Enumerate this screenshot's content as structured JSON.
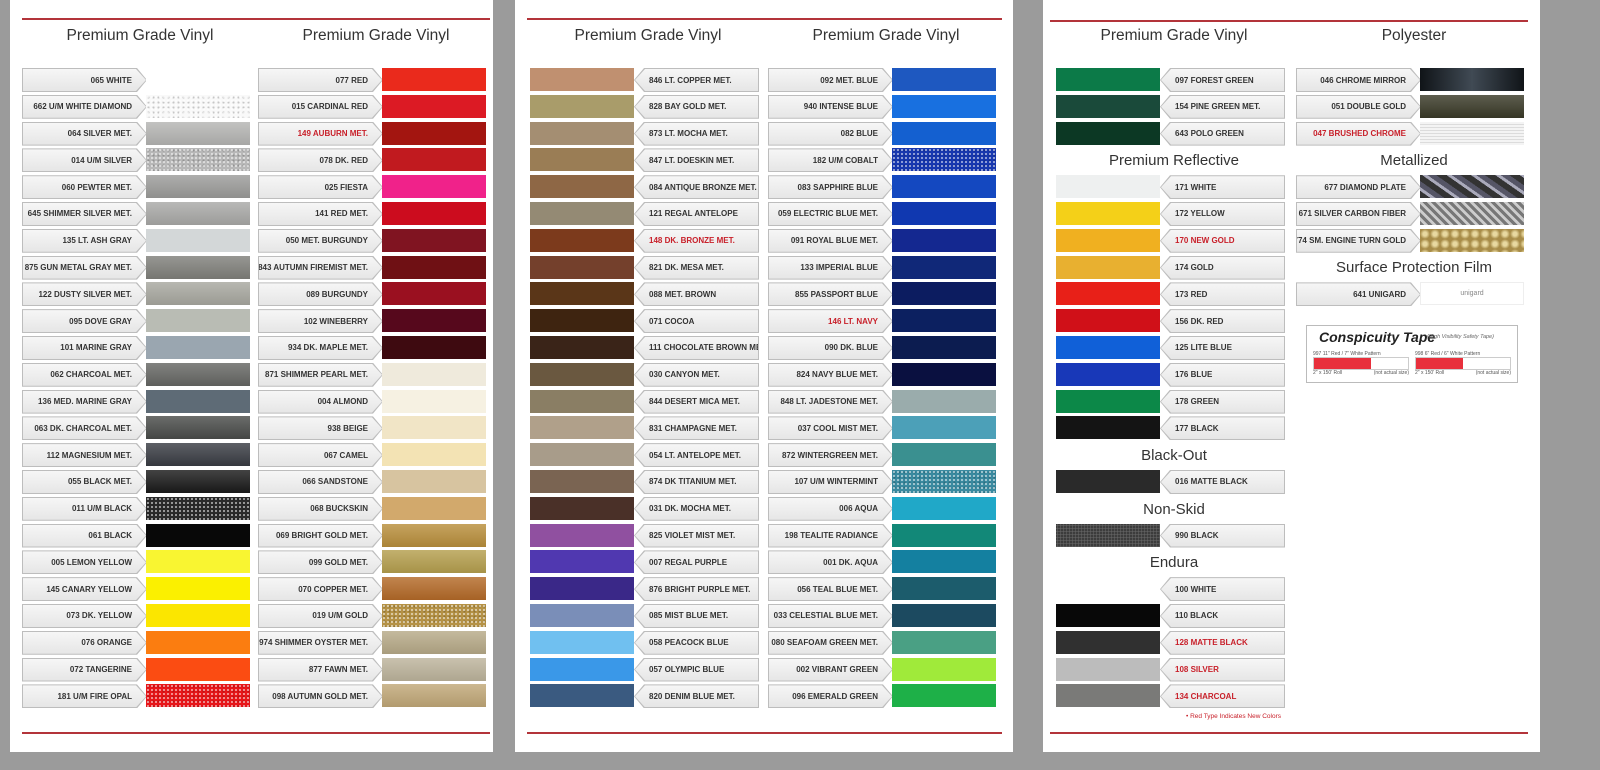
{
  "pages": [
    {
      "columns": [
        {
          "header": "Premium Grade Vinyl",
          "arrow": "right",
          "rows": [
            {
              "label": "065 WHITE",
              "color": "#ffffff"
            },
            {
              "label": "662 U/M WHITE DIAMOND",
              "color": "#f9f9f9",
              "pattern": "glitter"
            },
            {
              "label": "064 SILVER MET.",
              "color": "#b5b5b3",
              "pattern": "metallic"
            },
            {
              "label": "014 U/M SILVER",
              "color": "#b8b8b8",
              "pattern": "glitter"
            },
            {
              "label": "060 PEWTER MET.",
              "color": "#9c9c9a",
              "pattern": "metallic"
            },
            {
              "label": "645 SHIMMER SILVER MET.",
              "color": "#a9a9a7",
              "pattern": "metallic"
            },
            {
              "label": "135 LT. ASH GRAY",
              "color": "#d3d7d8"
            },
            {
              "label": "875 GUN METAL GRAY MET.",
              "color": "#80807b",
              "pattern": "metallic"
            },
            {
              "label": "122 DUSTY SILVER MET.",
              "color": "#a8a8a0",
              "pattern": "metallic"
            },
            {
              "label": "095 DOVE GRAY",
              "color": "#b9bcb4"
            },
            {
              "label": "101 MARINE GRAY",
              "color": "#9aa6b0"
            },
            {
              "label": "062 CHARCOAL MET.",
              "color": "#666764",
              "pattern": "metallic"
            },
            {
              "label": "136 MED. MARINE GRAY",
              "color": "#5e6b76"
            },
            {
              "label": "063 DK. CHARCOAL MET.",
              "color": "#4a4c4a",
              "pattern": "metallic"
            },
            {
              "label": "112 MAGNESIUM MET.",
              "color": "#3a3d44",
              "pattern": "metallic"
            },
            {
              "label": "055 BLACK MET.",
              "color": "#1a1a1a",
              "pattern": "metallic"
            },
            {
              "label": "011 U/M BLACK",
              "color": "#2a2a2a",
              "pattern": "glitter"
            },
            {
              "label": "061 BLACK",
              "color": "#080808"
            },
            {
              "label": "005 LEMON YELLOW",
              "color": "#f9f531"
            },
            {
              "label": "145 CANARY YELLOW",
              "color": "#fbf000"
            },
            {
              "label": "073 DK. YELLOW",
              "color": "#fbe600"
            },
            {
              "label": "076 ORANGE",
              "color": "#fb7d10"
            },
            {
              "label": "072 TANGERINE",
              "color": "#fb4c12"
            },
            {
              "label": "181 U/M FIRE OPAL",
              "color": "#e8161a",
              "pattern": "glitter"
            }
          ]
        },
        {
          "header": "Premium Grade Vinyl",
          "arrow": "right",
          "rows": [
            {
              "label": "077 RED",
              "color": "#ea2a1c"
            },
            {
              "label": "015 CARDINAL RED",
              "color": "#dc1a24"
            },
            {
              "label": "149 AUBURN MET.",
              "color": "#a31510",
              "new": true
            },
            {
              "label": "078 DK. RED",
              "color": "#c11a1f"
            },
            {
              "label": "025 FIESTA",
              "color": "#f0228a"
            },
            {
              "label": "141 RED MET.",
              "color": "#cc0c1e"
            },
            {
              "label": "050 MET. BURGUNDY",
              "color": "#801421"
            },
            {
              "label": "843 AUTUMN FIREMIST MET.",
              "color": "#6f1014"
            },
            {
              "label": "089 BURGUNDY",
              "color": "#9a1020"
            },
            {
              "label": "102 WINEBERRY",
              "color": "#56081c"
            },
            {
              "label": "934 DK. MAPLE MET.",
              "color": "#3e0a10"
            },
            {
              "label": "871 SHIMMER PEARL MET.",
              "color": "#efeadc"
            },
            {
              "label": "004 ALMOND",
              "color": "#f6f1e2"
            },
            {
              "label": "938 BEIGE",
              "color": "#f1e5c6"
            },
            {
              "label": "067 CAMEL",
              "color": "#f3e3b4"
            },
            {
              "label": "066 SANDSTONE",
              "color": "#d7c4a0"
            },
            {
              "label": "068 BUCKSKIN",
              "color": "#d2a96c"
            },
            {
              "label": "069 BRIGHT GOLD MET.",
              "color": "#b98f3c",
              "pattern": "metallic"
            },
            {
              "label": "099 GOLD MET.",
              "color": "#b59f4e",
              "pattern": "metallic"
            },
            {
              "label": "070 COPPER MET.",
              "color": "#b46a28",
              "pattern": "metallic"
            },
            {
              "label": "019 U/M GOLD",
              "color": "#b59246",
              "pattern": "glitter"
            },
            {
              "label": "974 SHIMMER OYSTER MET.",
              "color": "#b7aa88",
              "pattern": "metallic"
            },
            {
              "label": "877 FAWN MET.",
              "color": "#bdb49c",
              "pattern": "metallic"
            },
            {
              "label": "098 AUTUMN GOLD MET.",
              "color": "#c1a878",
              "pattern": "metallic"
            }
          ]
        }
      ]
    },
    {
      "columns": [
        {
          "header": "Premium Grade Vinyl",
          "arrow": "left",
          "rows": [
            {
              "label": "846 LT. COPPER MET.",
              "color": "#c09070"
            },
            {
              "label": "828 BAY GOLD MET.",
              "color": "#a99c6a"
            },
            {
              "label": "873 LT. MOCHA MET.",
              "color": "#a48e72"
            },
            {
              "label": "847 LT. DOESKIN MET.",
              "color": "#9a7d55"
            },
            {
              "label": "084 ANTIQUE BRONZE MET.",
              "color": "#8e6745"
            },
            {
              "label": "121 REGAL ANTELOPE",
              "color": "#948a74"
            },
            {
              "label": "148 DK. BRONZE MET.",
              "color": "#7c3a1c",
              "new": true
            },
            {
              "label": "821 DK. MESA MET.",
              "color": "#74402c"
            },
            {
              "label": "088 MET. BROWN",
              "color": "#5a3618"
            },
            {
              "label": "071 COCOA",
              "color": "#3e2410"
            },
            {
              "label": "111 CHOCOLATE BROWN MET.",
              "color": "#3a2418"
            },
            {
              "label": "030 CANYON MET.",
              "color": "#6a5840"
            },
            {
              "label": "844 DESERT MICA MET.",
              "color": "#8a7e64"
            },
            {
              "label": "831 CHAMPAGNE MET.",
              "color": "#b0a08a"
            },
            {
              "label": "054 LT. ANTELOPE MET.",
              "color": "#a89c8a"
            },
            {
              "label": "874 DK TITANIUM MET.",
              "color": "#7a6452"
            },
            {
              "label": "031 DK. MOCHA MET.",
              "color": "#4a3028"
            },
            {
              "label": "825 VIOLET MIST MET.",
              "color": "#9050a0"
            },
            {
              "label": "007 REGAL PURPLE",
              "color": "#5038b0"
            },
            {
              "label": "876 BRIGHT PURPLE MET.",
              "color": "#3a2888"
            },
            {
              "label": "085 MIST BLUE MET.",
              "color": "#7a8eb8"
            },
            {
              "label": "058 PEACOCK BLUE",
              "color": "#70c0f0"
            },
            {
              "label": "057 OLYMPIC BLUE",
              "color": "#3a98e8"
            },
            {
              "label": "820 DENIM BLUE MET.",
              "color": "#3a5a80"
            }
          ]
        },
        {
          "header": "Premium Grade Vinyl",
          "arrow": "right",
          "rows": [
            {
              "label": "092 MET. BLUE",
              "color": "#1e58c0"
            },
            {
              "label": "940 INTENSE BLUE",
              "color": "#1870e0"
            },
            {
              "label": "082 BLUE",
              "color": "#1460d0"
            },
            {
              "label": "182 U/M COBALT",
              "color": "#1838b0",
              "pattern": "glitter"
            },
            {
              "label": "083 SAPPHIRE BLUE",
              "color": "#1448c0"
            },
            {
              "label": "059 ELECTRIC BLUE MET.",
              "color": "#1038b0"
            },
            {
              "label": "091 ROYAL BLUE MET.",
              "color": "#142890"
            },
            {
              "label": "133 IMPERIAL BLUE",
              "color": "#102878"
            },
            {
              "label": "855 PASSPORT BLUE",
              "color": "#0c1c60"
            },
            {
              "label": "146 LT. NAVY",
              "color": "#0c2060",
              "new": true
            },
            {
              "label": "090 DK. BLUE",
              "color": "#0c1c50"
            },
            {
              "label": "824 NAVY BLUE MET.",
              "color": "#0a1040"
            },
            {
              "label": "848 LT. JADESTONE MET.",
              "color": "#9aacac"
            },
            {
              "label": "037 COOL MIST MET.",
              "color": "#4ca0b8"
            },
            {
              "label": "872 WINTERGREEN MET.",
              "color": "#3a9090"
            },
            {
              "label": "107 U/M WINTERMINT",
              "color": "#3a8aa0",
              "pattern": "glitter"
            },
            {
              "label": "006 AQUA",
              "color": "#20a8c8"
            },
            {
              "label": "198 TEALITE RADIANCE",
              "color": "#128878"
            },
            {
              "label": "001 DK. AQUA",
              "color": "#1480a0"
            },
            {
              "label": "056 TEAL BLUE MET.",
              "color": "#1c5c6c"
            },
            {
              "label": "033 CELESTIAL BLUE MET.",
              "color": "#1c4a60"
            },
            {
              "label": "080 SEAFOAM GREEN MET.",
              "color": "#4aa084"
            },
            {
              "label": "002 VIBRANT GREEN",
              "color": "#a0ea3a"
            },
            {
              "label": "096 EMERALD GREEN",
              "color": "#1eb048"
            }
          ]
        }
      ]
    },
    {
      "columns": [
        {
          "header": "Premium Grade Vinyl",
          "arrow": "left",
          "rows": [
            {
              "label": "097 FOREST GREEN",
              "color": "#0c7a48"
            },
            {
              "label": "154 PINE GREEN MET.",
              "color": "#1a4a3a"
            },
            {
              "label": "643 POLO GREEN",
              "color": "#0c3824"
            },
            {
              "heading": "Premium Reflective"
            },
            {
              "label": "171 WHITE",
              "color": "#eef0f0"
            },
            {
              "label": "172 YELLOW",
              "color": "#f4d018"
            },
            {
              "label": "170 NEW GOLD",
              "color": "#f0b020",
              "new": true
            },
            {
              "label": "174 GOLD",
              "color": "#e8b030"
            },
            {
              "label": "173 RED",
              "color": "#e82018"
            },
            {
              "label": "156 DK. RED",
              "color": "#d01018"
            },
            {
              "label": "125 LITE BLUE",
              "color": "#1060d8"
            },
            {
              "label": "176 BLUE",
              "color": "#1838b8"
            },
            {
              "label": "178 GREEN",
              "color": "#0c8848"
            },
            {
              "label": "177 BLACK",
              "color": "#141414"
            },
            {
              "heading": "Black-Out"
            },
            {
              "label": "016 MATTE BLACK",
              "color": "#2a2a2a"
            },
            {
              "heading": "Non-Skid"
            },
            {
              "label": "990 BLACK",
              "color": "#2a2a2a",
              "pattern": "texture"
            },
            {
              "heading": "Endura"
            },
            {
              "label": "100 WHITE",
              "color": "#ffffff"
            },
            {
              "label": "110 BLACK",
              "color": "#080808"
            },
            {
              "label": "128 MATTE BLACK",
              "color": "#303030",
              "new": true
            },
            {
              "label": "108 SILVER",
              "color": "#bcbcbc",
              "new": true
            },
            {
              "label": "134 CHARCOAL",
              "color": "#7a7a78",
              "new": true
            }
          ]
        },
        {
          "header": "Polyester",
          "arrow": "right",
          "rows": [
            {
              "label": "046 CHROME MIRROR",
              "color": "#1a2028",
              "pattern": "mirror"
            },
            {
              "label": "051 DOUBLE GOLD",
              "color": "#3a3a28",
              "pattern": "metallic"
            },
            {
              "label": "047 BRUSHED CHROME",
              "color": "#e8e8e8",
              "pattern": "brushed",
              "new": true
            },
            {
              "heading": "Metallized"
            },
            {
              "label": "677 DIAMOND PLATE",
              "color": "#404850",
              "pattern": "diamond"
            },
            {
              "label": "671 SILVER CARBON FIBER",
              "color": "#a0a0a0",
              "pattern": "carbon"
            },
            {
              "label": "774 SM. ENGINE TURN GOLD",
              "color": "#c8b070",
              "pattern": "engine"
            },
            {
              "heading": "Surface Protection Film"
            },
            {
              "label": "641 UNIGARD",
              "color": "#ffffff",
              "swatch_text": "unigard"
            }
          ]
        }
      ]
    }
  ],
  "conspicuity": {
    "title": "Conspicuity Tape",
    "subtitle": "(High Visibility Safety Tape)",
    "tapes": [
      {
        "caption": "997 11\" Red / 7\" White Pattern",
        "size": "2\" x 150' Roll",
        "note": "(not actual size)",
        "red_fraction": 0.61
      },
      {
        "caption": "998 6\" Red / 6\" White Pattern",
        "size": "2\" x 150' Roll",
        "note": "(not actual size)",
        "red_fraction": 0.5
      }
    ],
    "tape_red": "#e8303c"
  },
  "footnote": "• Red Type Indicates New Colors",
  "colors": {
    "accent_line": "#b3343a",
    "new_text": "#c8202a",
    "background": "#9b9b9b"
  }
}
